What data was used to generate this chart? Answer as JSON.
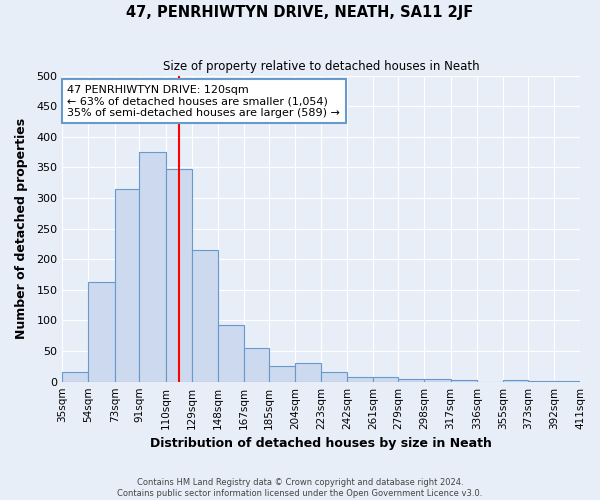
{
  "title": "47, PENRHIWTYN DRIVE, NEATH, SA11 2JF",
  "subtitle": "Size of property relative to detached houses in Neath",
  "xlabel": "Distribution of detached houses by size in Neath",
  "ylabel": "Number of detached properties",
  "bin_edges": [
    35,
    54,
    73,
    91,
    110,
    129,
    148,
    167,
    185,
    204,
    223,
    242,
    261,
    279,
    298,
    317,
    336,
    355,
    373,
    392,
    411
  ],
  "bin_labels": [
    "35sqm",
    "54sqm",
    "73sqm",
    "91sqm",
    "110sqm",
    "129sqm",
    "148sqm",
    "167sqm",
    "185sqm",
    "204sqm",
    "223sqm",
    "242sqm",
    "261sqm",
    "279sqm",
    "298sqm",
    "317sqm",
    "336sqm",
    "355sqm",
    "373sqm",
    "392sqm",
    "411sqm"
  ],
  "bar_heights": [
    15,
    163,
    315,
    375,
    348,
    215,
    93,
    55,
    25,
    30,
    15,
    8,
    8,
    5,
    4,
    2,
    0,
    2,
    1,
    1
  ],
  "bar_color": "#ccd9ee",
  "bar_edge_color": "#6699cc",
  "vline_x": 120,
  "vline_color": "red",
  "annotation_title": "47 PENRHIWTYN DRIVE: 120sqm",
  "annotation_line1": "← 63% of detached houses are smaller (1,054)",
  "annotation_line2": "35% of semi-detached houses are larger (589) →",
  "annotation_box_color": "white",
  "annotation_box_edge": "#6699cc",
  "ylim": [
    0,
    500
  ],
  "yticks": [
    0,
    50,
    100,
    150,
    200,
    250,
    300,
    350,
    400,
    450,
    500
  ],
  "footnote1": "Contains HM Land Registry data © Crown copyright and database right 2024.",
  "footnote2": "Contains public sector information licensed under the Open Government Licence v3.0.",
  "bg_color": "#e8eef8",
  "plot_bg_color": "#e8eef8",
  "grid_color": "#ffffff"
}
